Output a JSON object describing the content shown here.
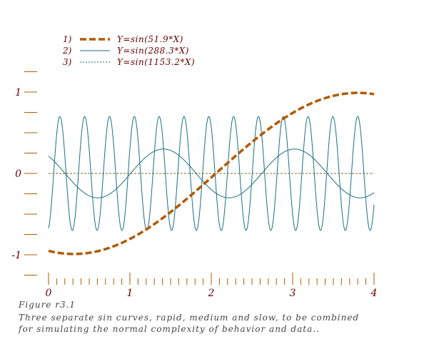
{
  "chart_data": {
    "type": "line",
    "title": "",
    "xlabel": "",
    "ylabel": "",
    "xlim": [
      0,
      4
    ],
    "ylim": [
      -1.25,
      1.25
    ],
    "x_ticks": [
      "0",
      "1",
      "2",
      "3",
      "4"
    ],
    "y_ticks": [
      "-1",
      "0",
      "1"
    ],
    "zero_line": true,
    "grid": false,
    "legend_position": "top-left",
    "series": [
      {
        "id": "1)",
        "name": "Y=sin(51.9*X)",
        "style": "dashed-thick",
        "color": "#b05a00"
      },
      {
        "id": "2)",
        "name": "Y=sin(288.3*X)",
        "style": "solid-thin",
        "color": "#1a6f86"
      },
      {
        "id": "3)",
        "name": "Y=sin(1153.2*X)",
        "style": "dotted-thin",
        "color": "#1a6f86"
      }
    ]
  },
  "figure_label": "Figure r3.1",
  "caption_line1": "Three separate sin curves, rapid, medium and slow, to be combined",
  "caption_line2": "for simulating the normal complexity of behavior and data.."
}
